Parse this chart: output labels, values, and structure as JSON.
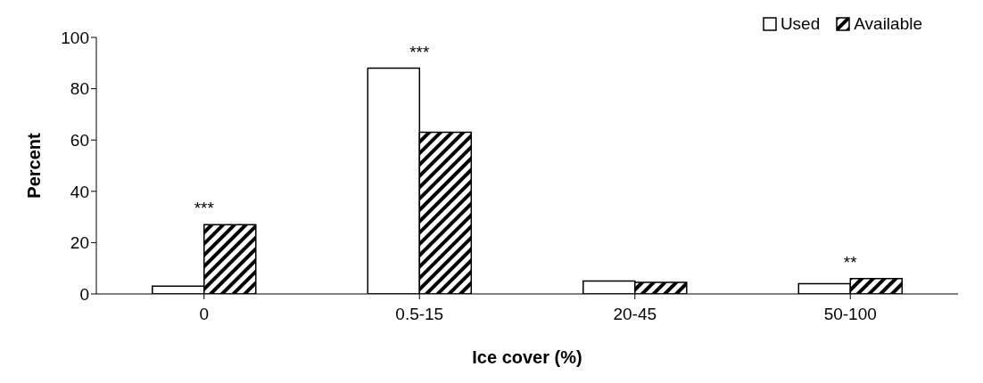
{
  "chart_data": {
    "type": "bar",
    "xlabel": "Ice cover (%)",
    "ylabel": "Percent",
    "categories": [
      "0",
      "0.5-15",
      "20-45",
      "50-100"
    ],
    "series": [
      {
        "name": "Used",
        "color": "#ffffff",
        "values": [
          3,
          88,
          5,
          4
        ]
      },
      {
        "name": "Available",
        "color": "#000000",
        "values": [
          27,
          63,
          4.5,
          6
        ]
      }
    ],
    "ylim": [
      0,
      100
    ],
    "yticks": [
      0,
      20,
      40,
      60,
      80,
      100
    ],
    "grid": false,
    "legend": "top right",
    "annotations": [
      {
        "text": "***",
        "x": "0",
        "y": 27
      },
      {
        "text": "***",
        "x": "0.5-15",
        "y": 88
      },
      {
        "text": "**",
        "x": "50-100",
        "y": 6
      }
    ]
  }
}
